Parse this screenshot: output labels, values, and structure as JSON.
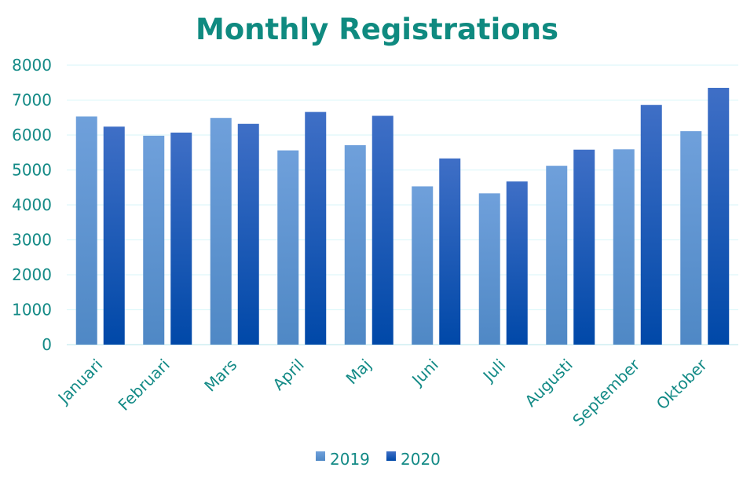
{
  "chart_data": {
    "type": "bar",
    "title": "Monthly Registrations",
    "xlabel": "",
    "ylabel": "",
    "ylim": [
      0,
      8000
    ],
    "yticks": [
      0,
      1000,
      2000,
      3000,
      4000,
      5000,
      6000,
      7000,
      8000
    ],
    "grid": true,
    "legend_position": "bottom-center",
    "categories": [
      "Januari",
      "Februari",
      "Mars",
      "April",
      "Maj",
      "Juni",
      "Juli",
      "Augusti",
      "September",
      "Oktober"
    ],
    "series": [
      {
        "name": "2019",
        "values": [
          6530,
          5980,
          6490,
          5560,
          5710,
          4530,
          4330,
          5120,
          5590,
          6110
        ],
        "color": "#6fa0db",
        "color_bottom": "#4f88c5"
      },
      {
        "name": "2020",
        "values": [
          6240,
          6070,
          6320,
          6660,
          6550,
          5330,
          4670,
          5580,
          6860,
          7350
        ],
        "color": "#3f6fc6",
        "color_bottom": "#0048a8"
      }
    ]
  },
  "colors": {
    "title": "#0f8a80",
    "text": "#138a86",
    "grid": "#dff8fb",
    "axis": "#cfeef2"
  }
}
